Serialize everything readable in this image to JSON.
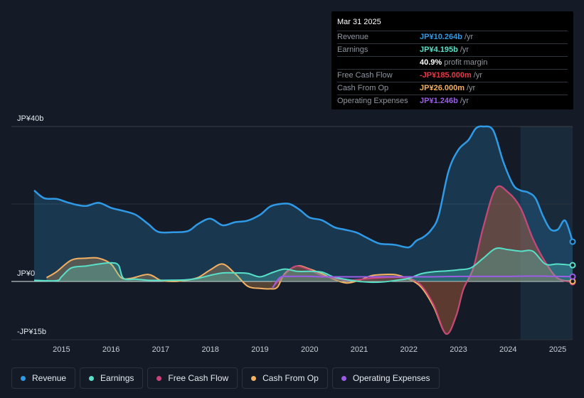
{
  "tooltip": {
    "date": "Mar 31 2025",
    "rows": [
      {
        "label": "Revenue",
        "value": "JP¥10.264b",
        "unit": "/yr",
        "color": "#2f9ae6"
      },
      {
        "label": "Earnings",
        "value": "JP¥4.195b",
        "unit": "/yr",
        "color": "#58e0c8"
      },
      {
        "label": "",
        "value": "40.9%",
        "unit": "profit margin",
        "color": "#ffffff"
      },
      {
        "label": "Free Cash Flow",
        "value": "-JP¥185.000m",
        "unit": "/yr",
        "color": "#e63946"
      },
      {
        "label": "Cash From Op",
        "value": "JP¥26.000m",
        "unit": "/yr",
        "color": "#f3b161"
      },
      {
        "label": "Operating Expenses",
        "value": "JP¥1.246b",
        "unit": "/yr",
        "color": "#9b5de5"
      }
    ]
  },
  "legend": [
    {
      "label": "Revenue",
      "color": "#2f9ae6"
    },
    {
      "label": "Earnings",
      "color": "#58e0c8"
    },
    {
      "label": "Free Cash Flow",
      "color": "#c8437a"
    },
    {
      "label": "Cash From Op",
      "color": "#f3b161"
    },
    {
      "label": "Operating Expenses",
      "color": "#9b5de5"
    }
  ],
  "chart_data": {
    "type": "area",
    "title": "",
    "xlabel": "",
    "ylabel": "",
    "x_range": [
      2014.45,
      2025.3
    ],
    "ylim": [
      -15,
      40
    ],
    "y_tick_labels": [
      {
        "value": 40,
        "label": "JP¥40b"
      },
      {
        "value": 0,
        "label": "JP¥0"
      },
      {
        "value": -15,
        "label": "-JP¥15b"
      }
    ],
    "x_ticks": [
      2015,
      2016,
      2017,
      2018,
      2019,
      2020,
      2021,
      2022,
      2023,
      2024,
      2025
    ],
    "x_tick_labels": [
      "2015",
      "2016",
      "2017",
      "2018",
      "2019",
      "2020",
      "2021",
      "2022",
      "2023",
      "2024",
      "2025"
    ],
    "forecast_start": 2024.25,
    "series": [
      {
        "name": "Revenue",
        "color": "#2f9ae6",
        "fill": true,
        "x": [
          2014.45,
          2014.65,
          2014.9,
          2015.1,
          2015.3,
          2015.5,
          2015.75,
          2016.0,
          2016.25,
          2016.5,
          2016.75,
          2016.95,
          2017.25,
          2017.55,
          2017.75,
          2018.0,
          2018.25,
          2018.5,
          2018.75,
          2019.0,
          2019.2,
          2019.4,
          2019.6,
          2019.8,
          2020.0,
          2020.25,
          2020.5,
          2020.7,
          2020.95,
          2021.15,
          2021.4,
          2021.6,
          2021.75,
          2022.0,
          2022.15,
          2022.3,
          2022.45,
          2022.6,
          2022.8,
          2023.0,
          2023.2,
          2023.35,
          2023.5,
          2023.7,
          2023.9,
          2024.1,
          2024.25,
          2024.4,
          2024.55,
          2024.7,
          2024.85,
          2025.0,
          2025.15,
          2025.3
        ],
        "y": [
          23.5,
          21.5,
          21.3,
          20.5,
          19.8,
          19.5,
          20.3,
          19.0,
          18.2,
          17.2,
          14.8,
          12.8,
          12.7,
          13.0,
          14.8,
          16.2,
          14.5,
          15.3,
          15.7,
          17.2,
          19.3,
          20.0,
          20.0,
          18.5,
          16.5,
          15.8,
          14.0,
          13.4,
          12.6,
          11.3,
          9.8,
          9.6,
          9.4,
          8.8,
          10.5,
          11.5,
          13.3,
          17.0,
          28.5,
          34.0,
          36.5,
          39.5,
          40.0,
          39.0,
          31.0,
          25.0,
          23.5,
          23.0,
          21.5,
          17.0,
          13.5,
          13.4,
          15.7,
          10.26
        ]
      },
      {
        "name": "Earnings",
        "color": "#58e0c8",
        "fill": true,
        "x": [
          2014.45,
          2014.9,
          2015.0,
          2015.2,
          2015.5,
          2015.75,
          2016.0,
          2016.15,
          2016.25,
          2016.5,
          2016.75,
          2017.0,
          2017.5,
          2017.75,
          2018.0,
          2018.25,
          2018.5,
          2018.75,
          2019.0,
          2019.25,
          2019.5,
          2019.75,
          2020.0,
          2020.25,
          2020.5,
          2020.75,
          2021.0,
          2021.25,
          2021.5,
          2021.75,
          2022.0,
          2022.25,
          2022.5,
          2022.75,
          2023.0,
          2023.25,
          2023.5,
          2023.75,
          2024.0,
          2024.25,
          2024.5,
          2024.75,
          2025.0,
          2025.3
        ],
        "y": [
          0.3,
          0.2,
          1.2,
          3.5,
          4.0,
          4.5,
          4.8,
          4.2,
          0.8,
          0.6,
          0.3,
          0.3,
          0.4,
          0.8,
          1.6,
          2.2,
          2.2,
          2.1,
          1.2,
          2.3,
          3.2,
          2.6,
          2.6,
          2.4,
          1.1,
          0.5,
          0.0,
          -0.2,
          -0.1,
          0.3,
          0.8,
          2.0,
          2.5,
          2.7,
          3.0,
          3.5,
          6.0,
          8.5,
          8.2,
          7.8,
          7.8,
          4.5,
          4.5,
          4.195
        ]
      },
      {
        "name": "Free Cash Flow",
        "color": "#c8437a",
        "fill": true,
        "fill_color": "#7a1f1f",
        "x": [
          2019.25,
          2019.4,
          2019.6,
          2019.75,
          2020.0,
          2020.25,
          2020.5,
          2020.75,
          2021.0,
          2021.25,
          2021.5,
          2021.75,
          2022.0,
          2022.25,
          2022.5,
          2022.75,
          2022.95,
          2023.1,
          2023.3,
          2023.5,
          2023.75,
          2024.0,
          2024.25,
          2024.5,
          2024.75,
          2025.0,
          2025.3
        ],
        "y": [
          -1.5,
          0.5,
          3.0,
          4.0,
          3.0,
          1.5,
          0.8,
          0.3,
          0.5,
          0.8,
          1.0,
          1.1,
          0.8,
          -1.0,
          -6.0,
          -13.5,
          -9.0,
          -2.0,
          3.5,
          14.0,
          24.0,
          23.0,
          19.0,
          11.0,
          5.0,
          0.8,
          -0.185
        ]
      },
      {
        "name": "Cash From Op",
        "color": "#f3b161",
        "fill": true,
        "x": [
          2014.7,
          2014.9,
          2015.2,
          2015.5,
          2015.75,
          2016.0,
          2016.2,
          2016.4,
          2016.75,
          2017.0,
          2017.25,
          2017.5,
          2017.75,
          2018.0,
          2018.25,
          2018.5,
          2018.75,
          2019.0,
          2019.2,
          2019.35,
          2019.5,
          2019.75,
          2020.0,
          2020.25,
          2020.5,
          2020.75,
          2021.0,
          2021.25,
          2021.5,
          2021.75,
          2022.0,
          2022.25,
          2022.5,
          2022.75,
          2022.95,
          2023.1,
          2023.3,
          2023.5,
          2023.75,
          2024.0,
          2024.25,
          2024.5,
          2024.75,
          2025.0,
          2025.3
        ],
        "y": [
          1.0,
          2.5,
          5.5,
          6.0,
          6.0,
          4.5,
          1.0,
          0.8,
          1.8,
          0.3,
          0.0,
          0.3,
          1.0,
          3.0,
          4.5,
          2.0,
          -1.2,
          -1.8,
          -1.9,
          -1.5,
          2.0,
          4.0,
          3.2,
          2.0,
          0.5,
          -0.4,
          0.3,
          1.5,
          1.8,
          1.7,
          0.6,
          -1.5,
          -6.5,
          -13.5,
          -9.0,
          -2.0,
          3.5,
          14.0,
          24.0,
          23.0,
          19.0,
          11.0,
          5.0,
          0.8,
          0.026
        ]
      },
      {
        "name": "Operating Expenses",
        "color": "#9b5de5",
        "fill": false,
        "x": [
          2019.25,
          2019.4,
          2019.6,
          2020.0,
          2020.25,
          2020.5,
          2020.75,
          2021.0,
          2021.5,
          2022.0,
          2022.5,
          2023.0,
          2023.5,
          2024.0,
          2024.5,
          2025.0,
          2025.3
        ],
        "y": [
          -1.8,
          1.0,
          1.3,
          1.3,
          1.2,
          1.2,
          1.2,
          1.2,
          1.2,
          1.2,
          1.2,
          1.3,
          1.3,
          1.3,
          1.4,
          1.3,
          1.246
        ]
      }
    ]
  }
}
